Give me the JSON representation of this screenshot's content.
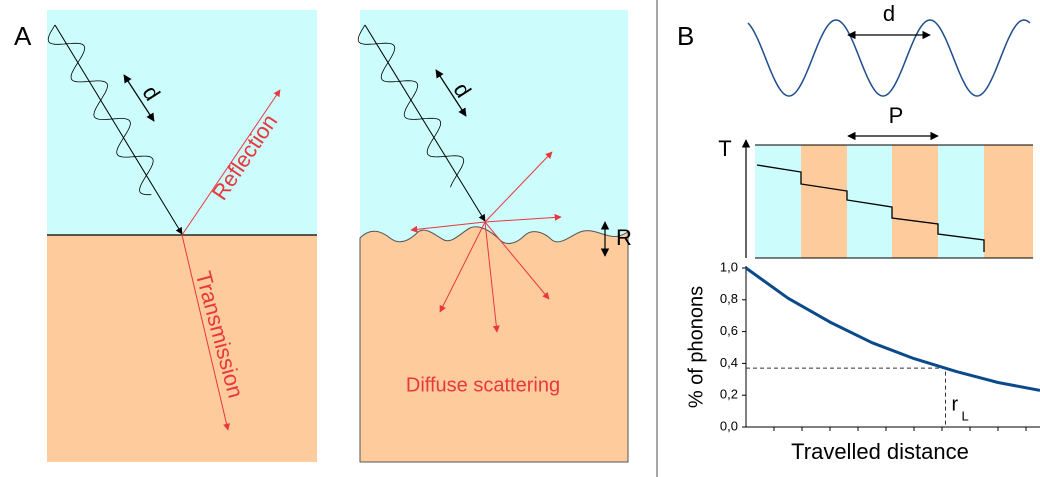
{
  "panel_a": {
    "label": "A",
    "left": {
      "d_label": "d",
      "reflection": "Reflection",
      "transmission": "Transmission"
    },
    "right": {
      "d_label": "d",
      "roughness": "R",
      "caption": "Diffuse scattering"
    }
  },
  "panel_b": {
    "label": "B",
    "wave": {
      "d_label": "d"
    },
    "layers": {
      "axis_label": "T",
      "period_label": "P"
    }
  },
  "chart_data": {
    "type": "line",
    "categories": [
      null,
      null,
      null,
      null,
      null,
      null,
      null,
      null
    ],
    "values": [
      1.0,
      0.81,
      0.66,
      0.53,
      0.43,
      0.35,
      0.28,
      0.23
    ],
    "color": "#0b4a8a",
    "ylim": [
      0,
      1
    ],
    "yticks": [
      {
        "value": 0,
        "label": "0,0"
      },
      {
        "value": 0.2,
        "label": "0,2"
      },
      {
        "value": 0.4,
        "label": "0,4"
      },
      {
        "value": 0.6,
        "label": "0,6"
      },
      {
        "value": 0.8,
        "label": "0,8"
      },
      {
        "value": 1,
        "label": "1,0"
      }
    ],
    "ylabel": "% of phonons",
    "xlabel": "Travelled distance",
    "marker": {
      "value": 0.37,
      "label": "r",
      "sub": "L"
    }
  }
}
